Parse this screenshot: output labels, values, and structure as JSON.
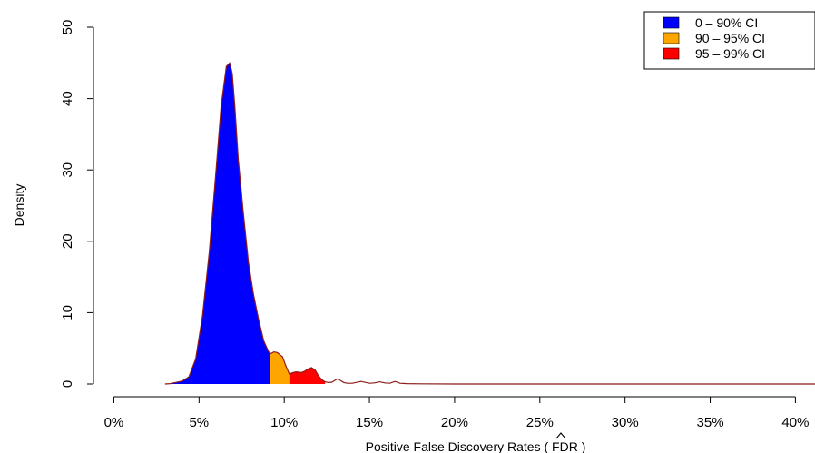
{
  "chart_data": {
    "type": "area",
    "title": "",
    "xlabel": "Positive False Discovery Rates ( FDR )",
    "xlabel_parts": {
      "before": "Positive False Discovery Rates ( F",
      "hat": "D",
      "after": "R )"
    },
    "ylabel": "Density",
    "xlim": [
      -0.0045,
      0.4115
    ],
    "ylim": [
      0,
      50
    ],
    "x_ticks": [
      0,
      0.05,
      0.1,
      0.15,
      0.2,
      0.25,
      0.3,
      0.35,
      0.4
    ],
    "x_tick_labels": [
      "0%",
      "5%",
      "10%",
      "15%",
      "20%",
      "25%",
      "30%",
      "35%",
      "40%"
    ],
    "y_ticks": [
      0,
      10,
      20,
      30,
      40,
      50
    ],
    "y_tick_labels": [
      "0",
      "10",
      "20",
      "30",
      "40",
      "50"
    ],
    "grid": false,
    "legend_position": "top-right",
    "series": [
      {
        "name": "0 – 90% CI",
        "color": "#0000ff",
        "x_range": [
          0.033,
          0.0915
        ]
      },
      {
        "name": "90 – 95% CI",
        "color": "#ffa500",
        "x_range": [
          0.0915,
          0.103
        ]
      },
      {
        "name": "95 – 99% CI",
        "color": "#ff0000",
        "x_range": [
          0.103,
          0.124
        ]
      }
    ],
    "curve_color": "#8b1a1a",
    "density": {
      "x": [
        0.03,
        0.033,
        0.036,
        0.04,
        0.044,
        0.048,
        0.052,
        0.056,
        0.06,
        0.063,
        0.066,
        0.068,
        0.0695,
        0.071,
        0.073,
        0.076,
        0.079,
        0.082,
        0.085,
        0.088,
        0.0915,
        0.094,
        0.096,
        0.099,
        0.101,
        0.103,
        0.105,
        0.107,
        0.11,
        0.112,
        0.114,
        0.116,
        0.118,
        0.12,
        0.122,
        0.124,
        0.126,
        0.128,
        0.131,
        0.133,
        0.135,
        0.137,
        0.14,
        0.145,
        0.15,
        0.153,
        0.156,
        0.159,
        0.162,
        0.165,
        0.168,
        0.172,
        0.18,
        0.2,
        0.25,
        0.3,
        0.35,
        0.4,
        0.4115
      ],
      "y": [
        0,
        0.05,
        0.2,
        0.4,
        1.0,
        3.5,
        9.5,
        18.5,
        30.0,
        39.0,
        44.5,
        45.0,
        43.5,
        39.0,
        31.5,
        24.0,
        17.0,
        12.5,
        9.0,
        6.0,
        4.2,
        4.5,
        4.4,
        3.8,
        2.5,
        1.4,
        1.6,
        1.7,
        1.6,
        1.8,
        2.1,
        2.3,
        2.0,
        1.2,
        0.6,
        0.3,
        0.2,
        0.25,
        0.7,
        0.5,
        0.2,
        0.1,
        0.1,
        0.35,
        0.1,
        0.15,
        0.3,
        0.15,
        0.1,
        0.35,
        0.1,
        0.05,
        0.02,
        0,
        0,
        0,
        0,
        0,
        0
      ]
    }
  }
}
